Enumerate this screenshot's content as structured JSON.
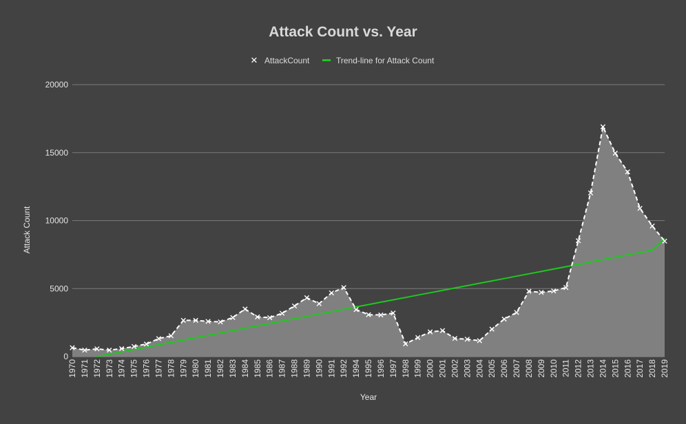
{
  "chart_data": {
    "type": "area",
    "title": "Attack Count vs. Year",
    "xlabel": "Year",
    "ylabel": "Attack Count",
    "ylim": [
      0,
      20000
    ],
    "yticks": [
      0,
      5000,
      10000,
      15000,
      20000
    ],
    "grid": true,
    "legend_position": "top-center",
    "x": [
      1970,
      1971,
      1972,
      1973,
      1974,
      1975,
      1976,
      1977,
      1978,
      1979,
      1980,
      1981,
      1982,
      1983,
      1984,
      1985,
      1986,
      1987,
      1988,
      1989,
      1990,
      1991,
      1992,
      1994,
      1995,
      1996,
      1997,
      1998,
      1999,
      2000,
      2001,
      2002,
      2003,
      2004,
      2005,
      2006,
      2007,
      2008,
      2009,
      2010,
      2011,
      2012,
      2013,
      2014,
      2015,
      2016,
      2017,
      2018,
      2019
    ],
    "series": [
      {
        "name": "AttackCount",
        "values": [
          651,
          471,
          568,
          473,
          581,
          740,
          923,
          1319,
          1526,
          2661,
          2662,
          2586,
          2545,
          2870,
          3495,
          2915,
          2860,
          3183,
          3721,
          4324,
          3887,
          4683,
          5071,
          3456,
          3081,
          3058,
          3197,
          934,
          1395,
          1814,
          1907,
          1333,
          1278,
          1166,
          2017,
          2758,
          3242,
          4805,
          4721,
          4826,
          5076,
          8522,
          12036,
          16903,
          14965,
          13587,
          10900,
          9607,
          8493
        ],
        "color": "#ffffff"
      },
      {
        "name": "Trend-line for Attack Count",
        "values": [
          -352,
          -178,
          -4,
          170,
          344,
          518,
          692,
          866,
          1040,
          1214,
          1388,
          1562,
          1736,
          1910,
          2084,
          2258,
          2432,
          2606,
          2780,
          2954,
          3128,
          3302,
          3476,
          3650,
          3824,
          3998,
          4172,
          4346,
          4520,
          4694,
          4868,
          5042,
          5216,
          5390,
          5564,
          5738,
          5912,
          6086,
          6260,
          6434,
          6608,
          6782,
          6956,
          7130,
          7304,
          7478,
          7652,
          7826,
          8700
        ],
        "color": "#1ec81e"
      }
    ],
    "colors": {
      "background": "#424242",
      "area_fill": "#808080",
      "grid": "#7a7a7a"
    }
  }
}
